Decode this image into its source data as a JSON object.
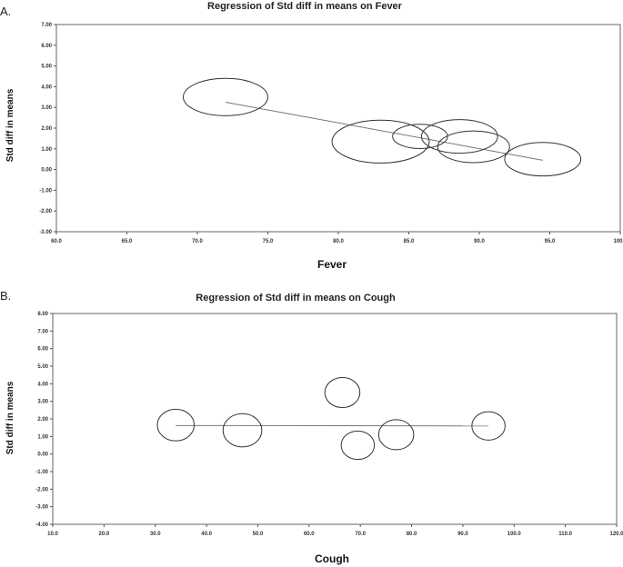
{
  "chart_data": [
    {
      "type": "scatter",
      "panel_label": "A.",
      "title": "Regression of Std diff in means on Fever",
      "xlabel": "Fever",
      "ylabel": "Std diff in means",
      "xlim": [
        60,
        100
      ],
      "ylim": [
        -3,
        7
      ],
      "xticks": [
        "60.0",
        "65.0",
        "70.0",
        "75.0",
        "80.0",
        "85.0",
        "90.0",
        "95.0",
        "100.0"
      ],
      "yticks": [
        "7.00",
        "6.00",
        "5.00",
        "4.00",
        "3.00",
        "2.00",
        "1.00",
        "0.00",
        "-1.00",
        "-2.00",
        "-3.00"
      ],
      "points": [
        {
          "x": 72.0,
          "y": 3.5,
          "r": 1.0
        },
        {
          "x": 83.0,
          "y": 1.35,
          "r": 1.15
        },
        {
          "x": 85.8,
          "y": 1.6,
          "r": 0.65
        },
        {
          "x": 88.6,
          "y": 1.6,
          "r": 0.9
        },
        {
          "x": 89.6,
          "y": 1.1,
          "r": 0.85
        },
        {
          "x": 94.5,
          "y": 0.5,
          "r": 0.9
        }
      ],
      "regression_line": {
        "x": [
          72.0,
          94.5
        ],
        "y": [
          3.25,
          0.45
        ]
      }
    },
    {
      "type": "scatter",
      "panel_label": "B.",
      "title": "Regression of Std diff in means on Cough",
      "xlabel": "Cough",
      "ylabel": "Std diff in means",
      "xlim": [
        10,
        120
      ],
      "ylim": [
        -4,
        8
      ],
      "xticks": [
        "10.0",
        "20.0",
        "30.0",
        "40.0",
        "50.0",
        "60.0",
        "70.0",
        "80.0",
        "90.0",
        "100.0",
        "110.0",
        "120.0"
      ],
      "yticks": [
        "8.00",
        "7.00",
        "6.00",
        "5.00",
        "4.00",
        "3.00",
        "2.00",
        "1.00",
        "0.00",
        "-1.00",
        "-2.00",
        "-3.00",
        "-4.00"
      ],
      "points": [
        {
          "x": 34.0,
          "y": 1.65,
          "r": 1.0
        },
        {
          "x": 47.0,
          "y": 1.35,
          "r": 1.05
        },
        {
          "x": 66.5,
          "y": 3.5,
          "r": 0.95
        },
        {
          "x": 69.5,
          "y": 0.5,
          "r": 0.9
        },
        {
          "x": 77.0,
          "y": 1.1,
          "r": 0.95
        },
        {
          "x": 95.0,
          "y": 1.6,
          "r": 0.9
        }
      ],
      "regression_line": {
        "x": [
          34.0,
          95.0
        ],
        "y": [
          1.62,
          1.6
        ]
      }
    }
  ]
}
